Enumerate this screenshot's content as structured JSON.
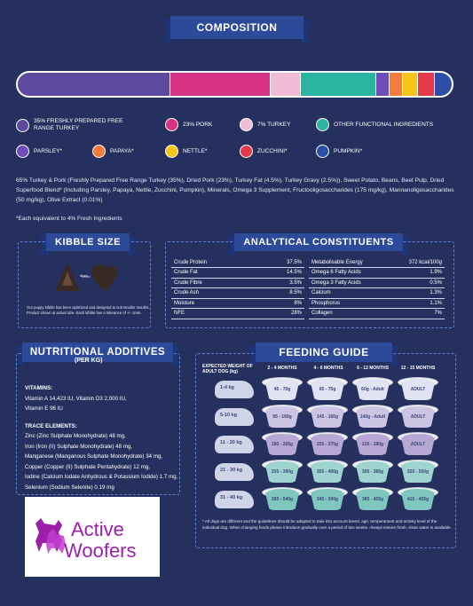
{
  "composition": {
    "title": "COMPOSITION",
    "bar": [
      {
        "color": "#5b4a9e",
        "share": 35
      },
      {
        "color": "#d63384",
        "share": 23
      },
      {
        "color": "#f1bcd6",
        "share": 7
      },
      {
        "color": "#2ab5a0",
        "share": 17.5
      },
      {
        "color": "#6f4db8",
        "share": 3
      },
      {
        "color": "#f47c3c",
        "share": 3
      },
      {
        "color": "#f5c518",
        "share": 3.5
      },
      {
        "color": "#e43a4a",
        "share": 4
      },
      {
        "color": "#2e4fa6",
        "share": 4
      }
    ],
    "legend": [
      {
        "label": "35% FRESHLY PREPARED FREE RANGE TURKEY",
        "color": "#5b4a9e"
      },
      {
        "label": "23% PORK",
        "color": "#d63384"
      },
      {
        "label": "7% TURKEY",
        "color": "#f1bcd6"
      },
      {
        "label": "OTHER FUNCTIONAL INGREDIENTS",
        "color": "#2ab5a0"
      },
      {
        "label": "PARSLEY*",
        "color": "#6f4db8"
      },
      {
        "label": "PAPAYA*",
        "color": "#f47c3c"
      },
      {
        "label": "NETTLE*",
        "color": "#f5c518"
      },
      {
        "label": "ZUCCHINI*",
        "color": "#e43a4a"
      },
      {
        "label": "PUMPKIN*",
        "color": "#2e4fa6"
      }
    ],
    "ingredients": "65% Turkey & Pork (Freshly Prepared Free Range Turkey (35%), Dried Pork (23%), Turkey Fat (4.5%), Turkey Gravy (2.5%)), Sweet Potato, Beans, Beet Pulp, Dried Superfood Blend* (Including Parsley, Papaya, Nettle, Zucchini, Pumpkin), Minerals, Omega 3 Supplement, Fructooligosaccharides (175 mg/kg), Mannanoligosaccharides (50 mg/kg), Olive Extract (0.01%)",
    "footnote": "*Each equivalent to 4% Fresh Ingredients"
  },
  "kibble": {
    "title": "KIBBLE SIZE",
    "size_label": "5mm",
    "note": "Our puppy kibble has been optimized and designed to suit smaller mouths. Product shown at actual size. Each kibble has a tolerance of +/- 1mm."
  },
  "analytical": {
    "title": "ANALYTICAL CONSTITUENTS",
    "left": [
      {
        "name": "Crude Protein",
        "value": "37.5%"
      },
      {
        "name": "Crude Fat",
        "value": "14.5%"
      },
      {
        "name": "Crude Fibre",
        "value": "3.5%"
      },
      {
        "name": "Crude Ash",
        "value": "8.5%"
      },
      {
        "name": "Moisture",
        "value": "8%"
      },
      {
        "name": "NFE",
        "value": "28%"
      }
    ],
    "right": [
      {
        "name": "Metabolisable Energy",
        "value": "372 kcal/100g"
      },
      {
        "name": "Omega 6 Fatty Acids",
        "value": "1.9%"
      },
      {
        "name": "Omega 3 Fatty Acids",
        "value": "0.5%"
      },
      {
        "name": "Calcium",
        "value": "1.3%"
      },
      {
        "name": "Phosphorus",
        "value": "1.1%"
      },
      {
        "name": "Collagen",
        "value": "7%"
      }
    ]
  },
  "nutritional": {
    "title": "NUTRITIONAL ADDITIVES",
    "subtitle": "(PER KG)",
    "vitamins_heading": "VITAMINS:",
    "vitamins": [
      "Vitamin A 14,423 IU, Vitamin D3 2,000 IU,",
      "Vitamin E 96 IU"
    ],
    "trace_heading": "TRACE ELEMENTS:",
    "trace": [
      "Zinc (Zinc Sulphate Monohydrate) 48 mg,",
      "Iron (Iron (II) Sulphate Monohydrate) 48 mg,",
      "Manganese (Manganous Sulphate Monohydrate) 34 mg,",
      "Copper (Copper (II) Sulphate Pentahydrate) 12 mg,",
      "Iodine (Calcium Iodate Anhydrous & Potassium Iodide) 1.7 mg,",
      "Selenium (Sodium Selenite) 0.19 mg"
    ]
  },
  "feeding": {
    "title": "FEEDING GUIDE",
    "weight_heading": "EXPECTED WEIGHT OF ADULT DOG (kg)",
    "age_columns": [
      "2 - 4 MONTHS",
      "4 - 6 MONTHS",
      "6 - 12 MONTHS",
      "12 - 15 MONTHS"
    ],
    "rows": [
      {
        "weight": "1-4 kg",
        "amounts": [
          "45 - 70g",
          "65 - 75g",
          "60g - Adult",
          "ADULT"
        ],
        "bowl_color": "#dfe3f3"
      },
      {
        "weight": "5-10 kg",
        "amounts": [
          "95 - 160g",
          "145 - 165g",
          "140g - Adult",
          "ADULT"
        ],
        "bowl_color": "#cbc5e3"
      },
      {
        "weight": "11 - 20 kg",
        "amounts": [
          "180 - 265g",
          "255 - 275g",
          "225 - 280g",
          "ADULT"
        ],
        "bowl_color": "#b7a7d5"
      },
      {
        "weight": "21 - 30 kg",
        "amounts": [
          "205 - 390g",
          "355 - 400g",
          "305 - 385g",
          "320 - 550g"
        ],
        "bowl_color": "#9ed3cf"
      },
      {
        "weight": "31 - 40 kg",
        "amounts": [
          "285 - 540g",
          "345 - 500g",
          "385 - 455g",
          "415 - 455g"
        ],
        "bowl_color": "#7fc6bf"
      }
    ],
    "note": "* All dogs are different and the guidelines should be adapted to take into account breed, age, temperament and activity level of the individual dog. When changing foods please introduce gradually over a period of two weeks. Always ensure fresh, clean water is available."
  },
  "logo": {
    "text_line1": "Active",
    "text_line2": "Woofers",
    "color": "#9b1fa8"
  }
}
